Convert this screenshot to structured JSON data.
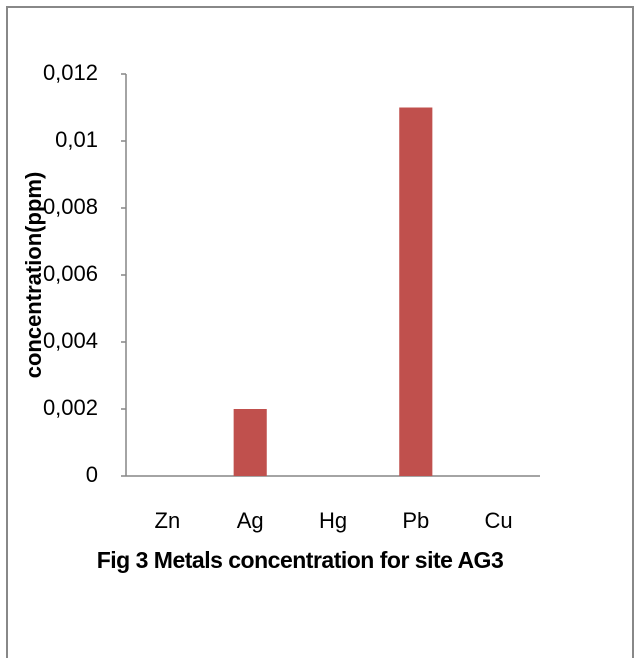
{
  "chart_data": {
    "type": "bar",
    "title": "Fig 3  Metals concentration for site AG3",
    "y_label": "concentration(ppm)",
    "categories": [
      "Zn",
      "Ag",
      "Hg",
      "Pb",
      "Cu"
    ],
    "values": [
      0,
      0.002,
      0,
      0.011,
      0
    ],
    "color": "#c0504d",
    "ylim": [
      0,
      0.012
    ],
    "yticks": [
      0,
      {
        "value": 0.002,
        "label": "0,002"
      },
      {
        "value": 0.004,
        "label": "0,004"
      },
      {
        "value": 0.006,
        "label": "0,006"
      },
      {
        "value": 0.008,
        "label": "0,008"
      },
      {
        "value": 0.01,
        "label": "0,01"
      },
      {
        "value": 0.012,
        "label": "0,012"
      }
    ],
    "grid": false
  }
}
